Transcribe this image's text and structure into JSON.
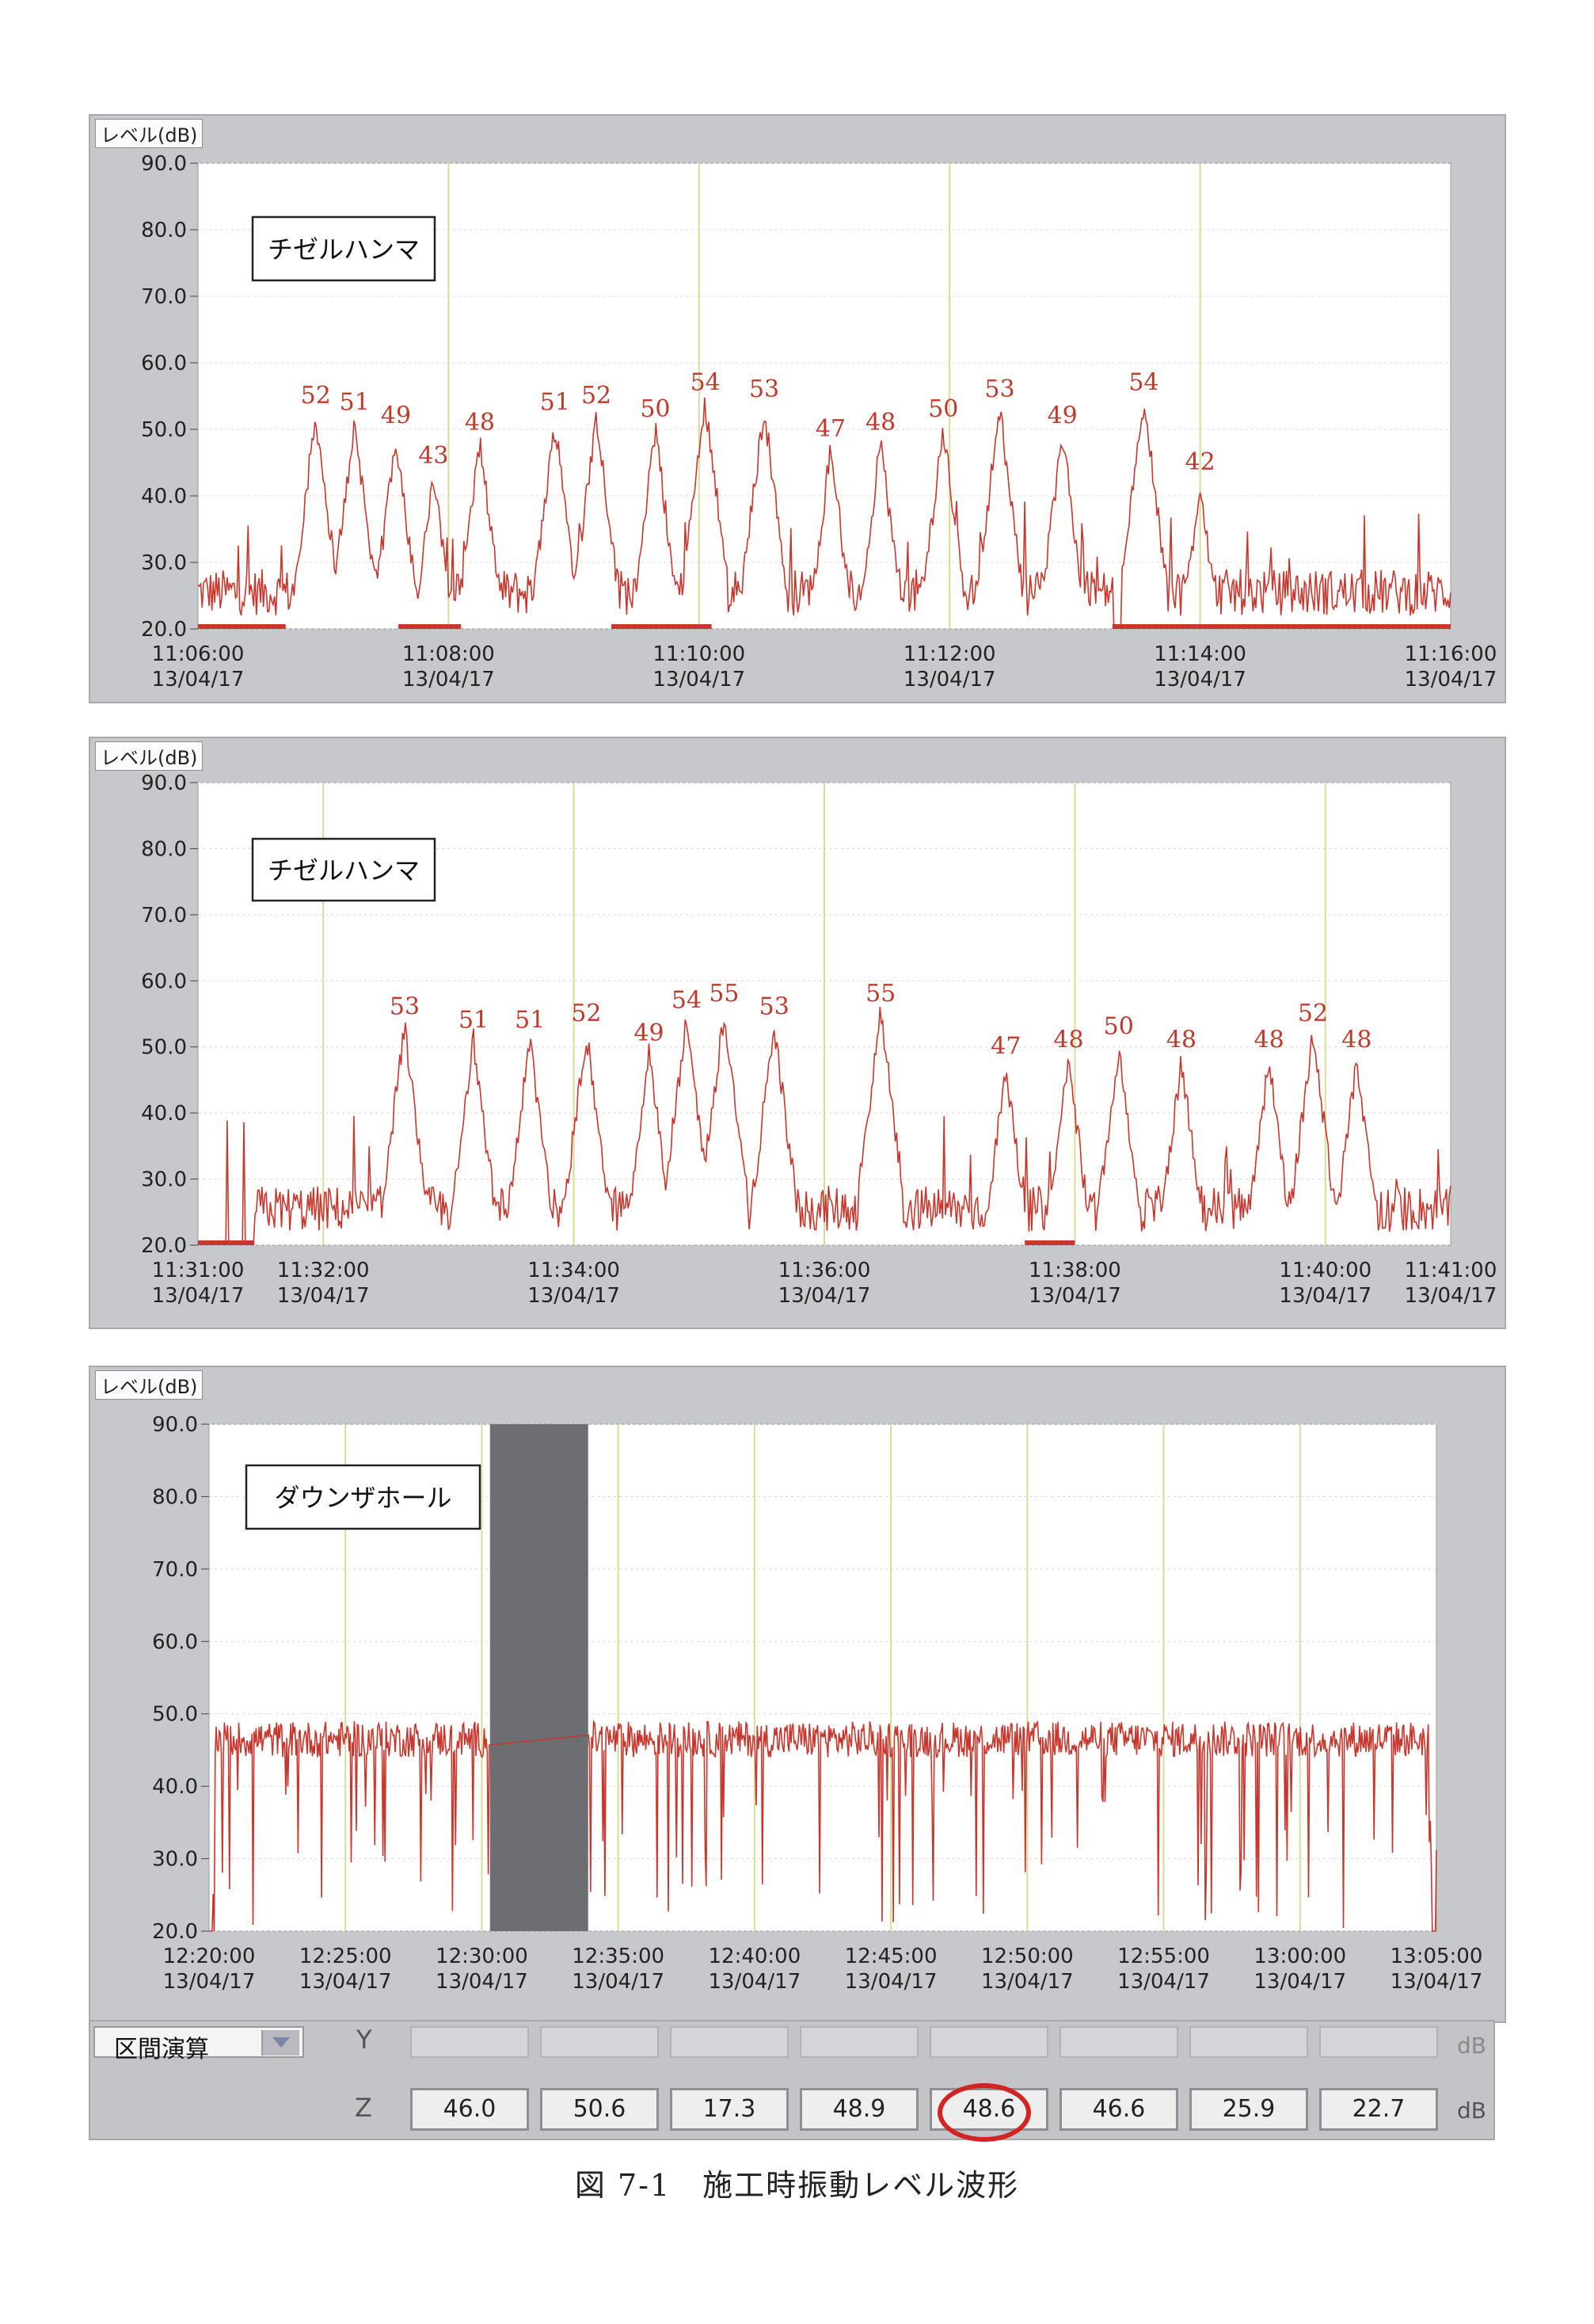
{
  "chart_data": [
    {
      "type": "line",
      "ylabel": "レベル(dB)",
      "ylim": [
        20,
        90
      ],
      "y_ticks": [
        "90.0",
        "80.0",
        "70.0",
        "60.0",
        "50.0",
        "40.0",
        "30.0",
        "20.0"
      ],
      "label_box": "チゼルハンマ",
      "x_ticks": [
        {
          "time": "11:06:00",
          "date": "13/04/17"
        },
        {
          "time": "11:08:00",
          "date": "13/04/17"
        },
        {
          "time": "11:10:00",
          "date": "13/04/17"
        },
        {
          "time": "11:12:00",
          "date": "13/04/17"
        },
        {
          "time": "11:14:00",
          "date": "13/04/17"
        },
        {
          "time": "11:16:00",
          "date": "13/04/17"
        }
      ],
      "x_range_minutes": [
        0,
        10
      ],
      "peak_labels": [
        {
          "t": 0.94,
          "value": 52
        },
        {
          "t": 1.25,
          "value": 51
        },
        {
          "t": 1.58,
          "value": 49
        },
        {
          "t": 1.88,
          "value": 43
        },
        {
          "t": 2.25,
          "value": 48
        },
        {
          "t": 2.85,
          "value": 51
        },
        {
          "t": 3.18,
          "value": 52
        },
        {
          "t": 3.65,
          "value": 50
        },
        {
          "t": 4.05,
          "value": 54
        },
        {
          "t": 4.52,
          "value": 53
        },
        {
          "t": 5.05,
          "value": 47
        },
        {
          "t": 5.45,
          "value": 48
        },
        {
          "t": 5.95,
          "value": 50
        },
        {
          "t": 6.4,
          "value": 53
        },
        {
          "t": 6.9,
          "value": 49
        },
        {
          "t": 7.55,
          "value": 54
        },
        {
          "t": 8.0,
          "value": 42
        }
      ]
    },
    {
      "type": "line",
      "ylabel": "レベル(dB)",
      "ylim": [
        20,
        90
      ],
      "y_ticks": [
        "90.0",
        "80.0",
        "70.0",
        "60.0",
        "50.0",
        "40.0",
        "30.0",
        "20.0"
      ],
      "label_box": "チゼルハンマ",
      "x_ticks": [
        {
          "time": "11:31:00",
          "date": "13/04/17"
        },
        {
          "time": "11:32:00",
          "date": "13/04/17"
        },
        {
          "time": "11:34:00",
          "date": "13/04/17"
        },
        {
          "time": "11:36:00",
          "date": "13/04/17"
        },
        {
          "time": "11:38:00",
          "date": "13/04/17"
        },
        {
          "time": "11:40:00",
          "date": "13/04/17"
        },
        {
          "time": "11:41:00",
          "date": "13/04/17"
        }
      ],
      "x_range_minutes": [
        0,
        10
      ],
      "peak_labels": [
        {
          "t": 1.65,
          "value": 53
        },
        {
          "t": 2.2,
          "value": 51
        },
        {
          "t": 2.65,
          "value": 51
        },
        {
          "t": 3.1,
          "value": 52
        },
        {
          "t": 3.6,
          "value": 49
        },
        {
          "t": 3.9,
          "value": 54
        },
        {
          "t": 4.2,
          "value": 55
        },
        {
          "t": 4.6,
          "value": 53
        },
        {
          "t": 5.45,
          "value": 55
        },
        {
          "t": 6.45,
          "value": 47
        },
        {
          "t": 6.95,
          "value": 48
        },
        {
          "t": 7.35,
          "value": 50
        },
        {
          "t": 7.85,
          "value": 48
        },
        {
          "t": 8.55,
          "value": 48
        },
        {
          "t": 8.9,
          "value": 52
        },
        {
          "t": 9.25,
          "value": 48
        }
      ]
    },
    {
      "type": "line",
      "ylabel": "レベル(dB)",
      "ylim": [
        20,
        90
      ],
      "y_ticks": [
        "90.0",
        "80.0",
        "70.0",
        "60.0",
        "50.0",
        "40.0",
        "30.0",
        "20.0"
      ],
      "label_box": "ダウンザホール",
      "x_ticks": [
        {
          "time": "12:20:00",
          "date": "13/04/17"
        },
        {
          "time": "12:25:00",
          "date": "13/04/17"
        },
        {
          "time": "12:30:00",
          "date": "13/04/17"
        },
        {
          "time": "12:35:00",
          "date": "13/04/17"
        },
        {
          "time": "12:40:00",
          "date": "13/04/17"
        },
        {
          "time": "12:45:00",
          "date": "13/04/17"
        },
        {
          "time": "12:50:00",
          "date": "13/04/17"
        },
        {
          "time": "12:55:00",
          "date": "13/04/17"
        },
        {
          "time": "13:00:00",
          "date": "13/04/17"
        },
        {
          "time": "13:05:00",
          "date": "13/04/17"
        }
      ],
      "x_range_minutes": [
        0,
        45
      ],
      "shaded_interval_minutes": [
        10.3,
        13.9
      ]
    }
  ],
  "interval_panel": {
    "selector_label": "区間演算",
    "y_label": "Y",
    "z_label": "Z",
    "unit": "dB",
    "z_values": [
      "46.0",
      "50.6",
      "17.3",
      "48.9",
      "48.6",
      "46.6",
      "25.9",
      "22.7"
    ],
    "highlighted_index": 4
  },
  "caption": "図 7-1　施工時振動レベル波形",
  "colors": {
    "trace": "#c8372d",
    "grid": "#d8dc9a",
    "panel": "#c7c8cb",
    "highlight": "#d32424"
  }
}
